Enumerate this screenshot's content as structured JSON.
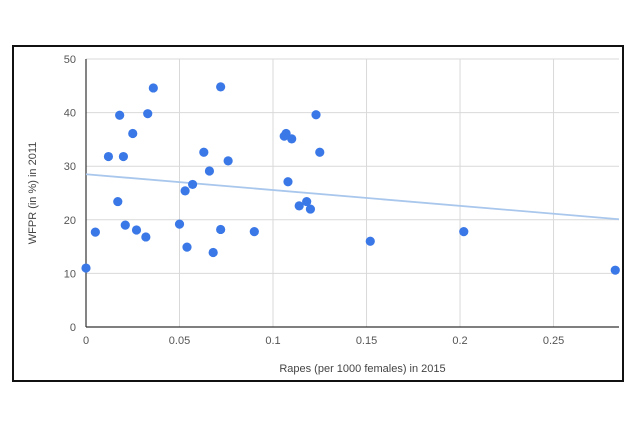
{
  "chart_data": {
    "type": "scatter",
    "title": "",
    "xlabel": "Rapes (per 1000 females) in 2015",
    "ylabel": "WFPR (in %) in 2011",
    "xlim": [
      0,
      0.285
    ],
    "ylim": [
      0,
      50
    ],
    "xticks": [
      0,
      0.05,
      0.1,
      0.15,
      0.2,
      0.25
    ],
    "xtick_labels": [
      "0",
      "0.05",
      "0.1",
      "0.15",
      "0.2",
      "0.25"
    ],
    "yticks": [
      0,
      10,
      20,
      30,
      40,
      50
    ],
    "ytick_labels": [
      "0",
      "10",
      "20",
      "30",
      "40",
      "50"
    ],
    "grid": true,
    "series": [
      {
        "points": [
          [
            0.0,
            11.0
          ],
          [
            0.005,
            17.7
          ],
          [
            0.012,
            31.8
          ],
          [
            0.017,
            23.4
          ],
          [
            0.018,
            39.5
          ],
          [
            0.02,
            31.8
          ],
          [
            0.021,
            19.0
          ],
          [
            0.025,
            36.1
          ],
          [
            0.027,
            18.1
          ],
          [
            0.032,
            16.8
          ],
          [
            0.033,
            39.8
          ],
          [
            0.036,
            44.6
          ],
          [
            0.05,
            19.2
          ],
          [
            0.053,
            25.4
          ],
          [
            0.054,
            14.9
          ],
          [
            0.057,
            26.6
          ],
          [
            0.063,
            32.6
          ],
          [
            0.066,
            29.1
          ],
          [
            0.068,
            13.9
          ],
          [
            0.072,
            18.2
          ],
          [
            0.072,
            44.8
          ],
          [
            0.076,
            31.0
          ],
          [
            0.09,
            17.8
          ],
          [
            0.106,
            35.6
          ],
          [
            0.107,
            36.1
          ],
          [
            0.108,
            27.1
          ],
          [
            0.11,
            35.1
          ],
          [
            0.114,
            22.6
          ],
          [
            0.118,
            23.4
          ],
          [
            0.12,
            22.0
          ],
          [
            0.123,
            39.6
          ],
          [
            0.125,
            32.6
          ],
          [
            0.152,
            16.0
          ],
          [
            0.202,
            17.8
          ],
          [
            0.283,
            10.6
          ]
        ],
        "color": "#3b78e7"
      }
    ],
    "trendline": {
      "type": "linear",
      "x": [
        0,
        0.285
      ],
      "y": [
        28.5,
        20.1
      ],
      "color": "#a9c7ec"
    }
  }
}
